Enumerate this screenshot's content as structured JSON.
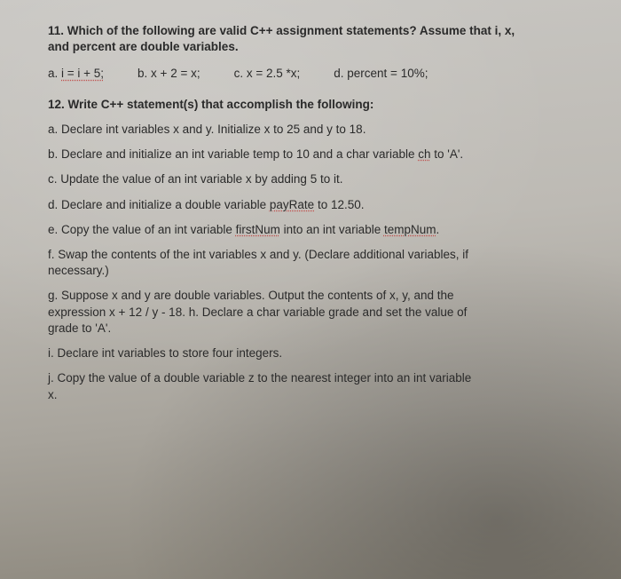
{
  "q11": {
    "prompt_a": "11. Which of the following are valid C++ assignment statements? Assume that i, x,",
    "prompt_b": "and percent are double variables.",
    "optA_label": "a. ",
    "optA_expr": "i = i + 5;",
    "optB": "b. x + 2 = x;",
    "optC": "c. x = 2.5 *x;",
    "optD": "d. percent = 10%;"
  },
  "q12": {
    "prompt": "12. Write C++ statement(s) that accomplish the following:",
    "a": "a. Declare int variables x and y. Initialize x to 25 and y to 18.",
    "b_pre": "b. Declare and initialize an int variable temp to 10 and a char variable ",
    "b_ch": "ch",
    "b_post": " to 'A'.",
    "c": "c. Update the value of an int variable x by adding 5 to it.",
    "d_pre": "d. Declare and initialize a double variable ",
    "d_pay": "payRate",
    "d_post": " to 12.50.",
    "e_pre": "e. Copy the value of an int variable ",
    "e_first": "firstNum",
    "e_mid": " into an int variable ",
    "e_temp": "tempNum",
    "e_post": ".",
    "f1": "f. Swap the contents of the int variables x and y. (Declare additional variables, if",
    "f2": "necessary.)",
    "g1": "g. Suppose x and y are double variables. Output the contents of x, y, and the",
    "g2": "expression x + 12 / y - 18.  h. Declare a char variable grade and set the value of",
    "g3": "grade to 'A'.",
    "i": "i. Declare int variables to store four integers.",
    "j1": "j. Copy the value of a double variable z to the nearest integer into an int variable",
    "j2": "x."
  }
}
